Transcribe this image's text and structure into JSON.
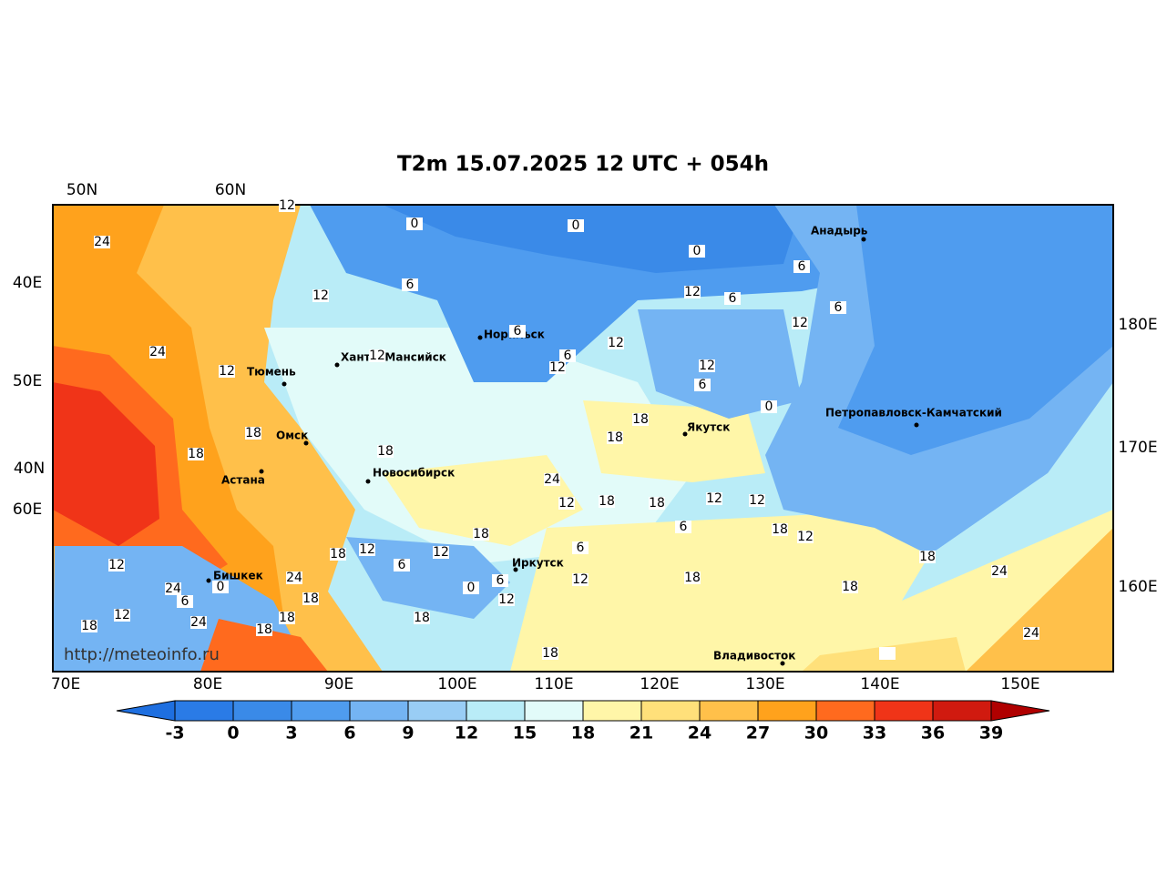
{
  "title": "T2m 15.07.2025 12 UTC + 054h",
  "top_labels": [
    "50N",
    "60N"
  ],
  "left_labels": [
    "40E",
    "50E",
    "40N",
    "60E"
  ],
  "right_labels": [
    "180E",
    "170E",
    "160E"
  ],
  "bottom_labels": [
    "70E",
    "80E",
    "90E",
    "100E",
    "110E",
    "120E",
    "130E",
    "140E",
    "150E"
  ],
  "cities": [
    "Анадырь",
    "Норильск",
    "Ханты-Мансийск",
    "Тюмень",
    "Омск",
    "Астана",
    "Новосибирск",
    "Якутск",
    "Петропавловск-Камчатский",
    "Иркутск",
    "Бишкек",
    "Владивосток"
  ],
  "contour_labels": [
    24,
    12,
    0,
    0,
    0,
    6,
    12,
    6,
    6,
    12,
    6,
    24,
    6,
    12,
    12,
    12,
    12,
    6,
    18,
    6,
    12,
    0,
    12,
    18,
    18,
    18,
    18,
    24,
    18,
    18,
    12,
    6,
    12,
    12,
    18,
    18,
    12,
    12,
    6,
    18,
    6,
    12,
    24,
    12,
    18,
    12,
    0,
    24,
    6,
    0,
    24,
    12,
    18,
    18,
    6,
    18,
    12,
    18,
    18,
    18,
    18,
    24,
    24,
    18
  ],
  "url": "http://meteoinfo.ru",
  "colorbar": {
    "ticks": [
      -3,
      0,
      3,
      6,
      9,
      12,
      15,
      18,
      21,
      24,
      27,
      30,
      33,
      36,
      39
    ],
    "colors": [
      "#2a7be6",
      "#3a8ae8",
      "#4f9cef",
      "#74b4f3",
      "#99cdf5",
      "#b9ecf7",
      "#e2fbf9",
      "#fff6a8",
      "#ffe07a",
      "#ffc04a",
      "#ffa21c",
      "#ff6a1e",
      "#f03418",
      "#d01a0f"
    ],
    "under_color": "#1e6fe0",
    "over_color": "#b00000"
  }
}
